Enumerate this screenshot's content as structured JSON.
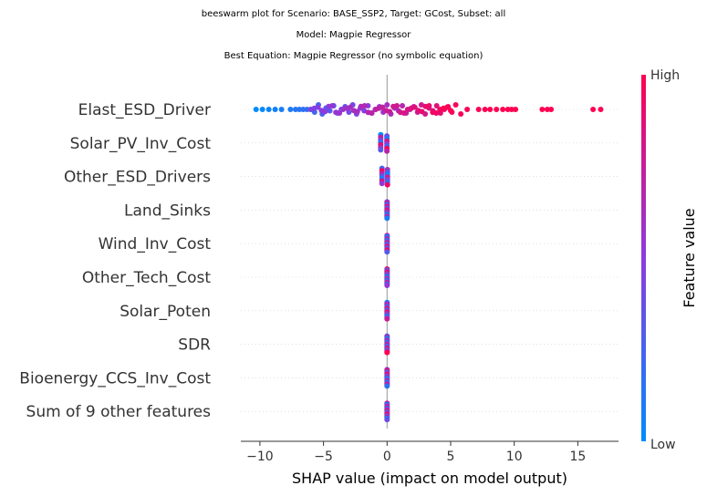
{
  "titles": [
    "beeswarm plot for Scenario: BASE_SSP2, Target: GCost, Subset: all",
    "Model: Magpie Regressor",
    "Best Equation: Magpie Regressor (no symbolic equation)"
  ],
  "chart_data": {
    "type": "scatter",
    "subtype": "shap-beeswarm",
    "xlabel": "SHAP value (impact on model output)",
    "xlim": [
      -11.5,
      18.2
    ],
    "xticks": [
      -10,
      -5,
      0,
      5,
      10,
      15
    ],
    "features": [
      "Elast_ESD_Driver",
      "Solar_PV_Inv_Cost",
      "Other_ESD_Drivers",
      "Land_Sinks",
      "Wind_Inv_Cost",
      "Other_Tech_Cost",
      "Solar_Poten",
      "SDR",
      "Bioenergy_CCS_Inv_Cost",
      "Sum of 9 other features"
    ],
    "main_feature_points": {
      "feature": "Elast_ESD_Driver",
      "shap_values": [
        -10.3,
        -9.8,
        -9.3,
        -8.8,
        -8.3,
        -7.6,
        -7.2,
        -6.9,
        -6.6,
        -6.3,
        -6.0,
        -5.7,
        -5.4,
        -5.1,
        -4.8,
        -4.5,
        -4.2,
        -3.9,
        -3.6,
        -3.3,
        -3.0,
        -2.7,
        -2.4,
        -2.1,
        -1.8,
        -1.5,
        -1.2,
        -0.9,
        -0.6,
        -0.3,
        0.0,
        0.3,
        0.6,
        0.9,
        1.2,
        1.5,
        1.8,
        2.1,
        2.4,
        2.7,
        3.0,
        3.3,
        3.6,
        3.9,
        4.2,
        4.5,
        4.8,
        5.1,
        5.4,
        5.8,
        6.3,
        7.2,
        7.7,
        8.1,
        8.6,
        9.1,
        9.5,
        9.8,
        10.1,
        12.2,
        12.6,
        12.9,
        16.2,
        16.8
      ],
      "feature_values_normalized": [
        0.0,
        0.02,
        0.04,
        0.06,
        0.08,
        0.1,
        0.12,
        0.14,
        0.16,
        0.18,
        0.2,
        0.22,
        0.24,
        0.26,
        0.28,
        0.3,
        0.32,
        0.34,
        0.36,
        0.38,
        0.4,
        0.42,
        0.44,
        0.46,
        0.48,
        0.5,
        0.52,
        0.54,
        0.56,
        0.58,
        0.6,
        0.62,
        0.64,
        0.66,
        0.68,
        0.7,
        0.72,
        0.74,
        0.76,
        0.78,
        0.8,
        0.82,
        0.84,
        0.86,
        0.88,
        0.9,
        0.92,
        0.94,
        0.96,
        0.97,
        0.98,
        0.98,
        0.99,
        0.99,
        1.0,
        1.0,
        1.0,
        1.0,
        1.0,
        1.0,
        1.0,
        1.0,
        1.0,
        1.0
      ]
    },
    "near_zero_features": {
      "Solar_PV_Inv_Cost": {
        "shap_range": [
          -0.5,
          0.4
        ],
        "colors": "mixed"
      },
      "Other_ESD_Drivers": {
        "shap_range": [
          -0.4,
          0.4
        ],
        "colors": "mixed"
      },
      "Land_Sinks": {
        "shap_range": [
          0.0,
          0.0
        ],
        "colors": "mixed"
      },
      "Wind_Inv_Cost": {
        "shap_range": [
          0.0,
          0.0
        ],
        "colors": "mixed"
      },
      "Other_Tech_Cost": {
        "shap_range": [
          0.0,
          0.0
        ],
        "colors": "mixed"
      },
      "Solar_Poten": {
        "shap_range": [
          0.0,
          0.0
        ],
        "colors": "mixed"
      },
      "SDR": {
        "shap_range": [
          0.0,
          0.0
        ],
        "colors": "mixed"
      },
      "Bioenergy_CCS_Inv_Cost": {
        "shap_range": [
          0.0,
          0.0
        ],
        "colors": "mixed"
      },
      "Sum of 9 other features": {
        "shap_range": [
          0.0,
          0.0
        ],
        "colors": "mixed"
      }
    },
    "colorbar": {
      "title": "Feature value",
      "high_label": "High",
      "low_label": "Low",
      "low_color": "#008bfb",
      "mid_color": "#8c3be0",
      "high_color": "#ff0052"
    }
  }
}
